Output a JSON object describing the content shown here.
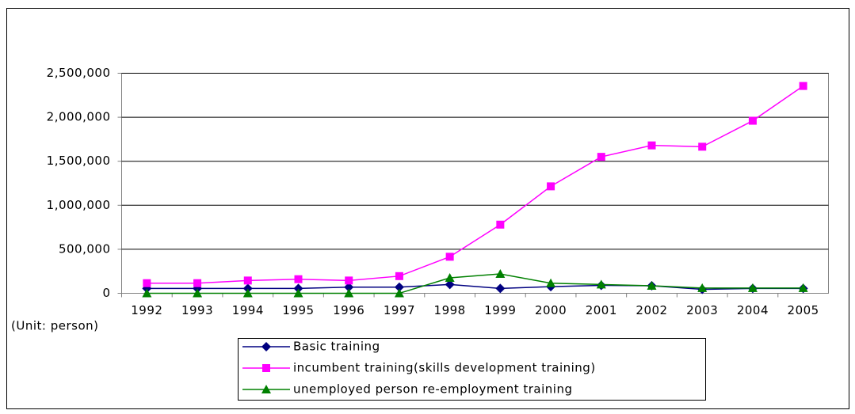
{
  "chart_data": {
    "type": "line",
    "categories": [
      "1992",
      "1993",
      "1994",
      "1995",
      "1996",
      "1997",
      "1998",
      "1999",
      "2000",
      "2001",
      "2002",
      "2003",
      "2004",
      "2005"
    ],
    "series": [
      {
        "name": "Basic training",
        "color": "#000080",
        "marker": "diamond",
        "values": [
          55000,
          55000,
          55000,
          55000,
          70000,
          70000,
          100000,
          55000,
          75000,
          90000,
          85000,
          45000,
          55000,
          55000
        ]
      },
      {
        "name": "incumbent training(skills development training)",
        "color": "#ff00ff",
        "marker": "square",
        "values": [
          115000,
          115000,
          145000,
          160000,
          145000,
          195000,
          415000,
          780000,
          1215000,
          1550000,
          1680000,
          1665000,
          1960000,
          2355000
        ]
      },
      {
        "name": "unemployed person re-employment training",
        "color": "#008000",
        "marker": "triangle",
        "values": [
          0,
          0,
          0,
          0,
          0,
          0,
          175000,
          220000,
          115000,
          100000,
          85000,
          60000,
          60000,
          60000
        ]
      }
    ],
    "ylim": [
      0,
      2500000
    ],
    "yticks": [
      0,
      {
        "value": 500000,
        "label": "500,000"
      },
      {
        "value": 1000000,
        "label": "1,000,000"
      },
      {
        "value": 1500000,
        "label": "1,500,000"
      },
      {
        "value": 2000000,
        "label": "2,000,000"
      },
      {
        "value": 2500000,
        "label": "2,500,000"
      }
    ],
    "grid": true,
    "unit_note": "(Unit: person)"
  }
}
